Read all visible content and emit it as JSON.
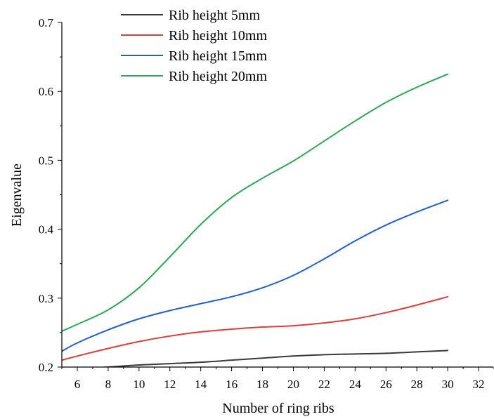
{
  "chart_data": {
    "type": "line",
    "title": "",
    "xlabel": "Number of ring ribs",
    "ylabel": "Eigenvalue",
    "xlim": [
      5,
      33
    ],
    "ylim": [
      0.2,
      0.7
    ],
    "x_ticks": [
      6,
      8,
      10,
      12,
      14,
      16,
      18,
      20,
      22,
      24,
      26,
      28,
      30,
      32
    ],
    "y_ticks": [
      {
        "value": 0.2,
        "label": "0.2"
      },
      {
        "value": 0.3,
        "label": "0.3"
      },
      {
        "value": 0.4,
        "label": "0.4"
      },
      {
        "value": 0.5,
        "label": "0.5"
      },
      {
        "value": 0.6,
        "label": "0.6"
      },
      {
        "value": 0.7,
        "label": "0.7"
      }
    ],
    "grid": false,
    "legend_position": "top-center",
    "x": [
      5,
      6,
      8,
      10,
      12,
      14,
      16,
      18,
      20,
      22,
      24,
      26,
      28,
      30
    ],
    "series": [
      {
        "name": "Rib height 5mm",
        "color": "#3a3a3a",
        "values": [
          0.196,
          0.198,
          0.2,
          0.203,
          0.205,
          0.207,
          0.21,
          0.213,
          0.216,
          0.218,
          0.219,
          0.22,
          0.222,
          0.224
        ]
      },
      {
        "name": "Rib height 10mm",
        "color": "#e03c3c",
        "values": [
          0.21,
          0.216,
          0.227,
          0.237,
          0.245,
          0.251,
          0.255,
          0.258,
          0.26,
          0.264,
          0.27,
          0.279,
          0.29,
          0.302
        ]
      },
      {
        "name": "Rib height 15mm",
        "color": "#1f5fcf",
        "values": [
          0.223,
          0.235,
          0.254,
          0.27,
          0.282,
          0.292,
          0.302,
          0.315,
          0.333,
          0.357,
          0.383,
          0.406,
          0.425,
          0.442
        ]
      },
      {
        "name": "Rib height 20mm",
        "color": "#2ea65a",
        "values": [
          0.252,
          0.262,
          0.283,
          0.315,
          0.36,
          0.407,
          0.446,
          0.474,
          0.499,
          0.528,
          0.557,
          0.584,
          0.606,
          0.625
        ]
      }
    ]
  }
}
